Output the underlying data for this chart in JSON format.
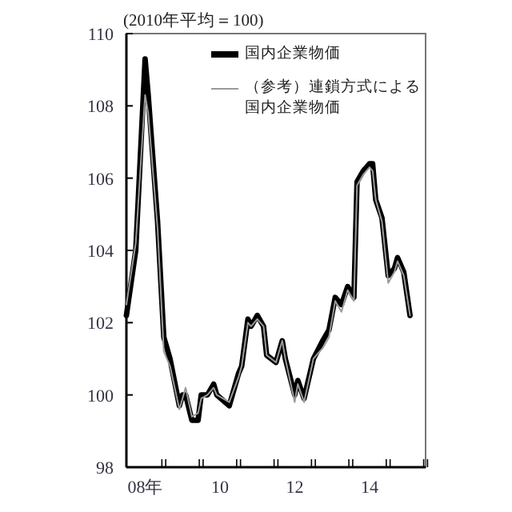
{
  "chart_data": {
    "type": "line",
    "ylabel": "(2010年平均＝100)",
    "x": [
      "2008-01",
      "2008-04",
      "2008-07",
      "2008-08",
      "2008-11",
      "2009-01",
      "2009-03",
      "2009-06",
      "2009-07",
      "2009-08",
      "2009-10",
      "2009-12",
      "2010-01",
      "2010-03",
      "2010-05",
      "2010-06",
      "2010-10",
      "2011-01",
      "2011-02",
      "2011-04",
      "2011-05",
      "2011-07",
      "2011-09",
      "2011-10",
      "2012-01",
      "2012-03",
      "2012-04",
      "2012-07",
      "2012-08",
      "2012-10",
      "2013-01",
      "2013-04",
      "2013-06",
      "2013-08",
      "2013-10",
      "2013-12",
      "2014-02",
      "2014-03",
      "2014-05",
      "2014-07",
      "2014-08",
      "2014-09",
      "2014-11",
      "2015-01",
      "2015-03",
      "2015-04",
      "2015-06",
      "2015-08"
    ],
    "series": [
      {
        "name": "国内企業物価",
        "color": "#000000",
        "values": [
          102.2,
          104.0,
          109.3,
          108.3,
          104.8,
          101.6,
          101.0,
          99.7,
          100.0,
          100.0,
          99.3,
          99.3,
          100.0,
          100.0,
          100.3,
          100.0,
          99.7,
          100.6,
          100.8,
          102.1,
          101.9,
          102.2,
          101.9,
          101.1,
          100.9,
          101.5,
          101.0,
          100.0,
          100.4,
          99.9,
          101.0,
          101.5,
          101.8,
          102.7,
          102.5,
          103.0,
          102.7,
          105.9,
          106.2,
          106.4,
          106.4,
          105.4,
          104.9,
          103.3,
          103.5,
          103.8,
          103.4,
          102.2
        ]
      },
      {
        "name": "（参考）連鎖方式による国内企業物価",
        "color": "#9a9a9a",
        "values": [
          102.5,
          104.2,
          108.3,
          107.8,
          104.6,
          101.2,
          100.8,
          99.6,
          99.9,
          100.2,
          99.4,
          99.5,
          99.9,
          100.0,
          100.2,
          100.0,
          99.8,
          100.5,
          100.8,
          102.0,
          101.9,
          102.1,
          101.9,
          101.1,
          100.9,
          101.5,
          101.0,
          99.8,
          100.3,
          99.8,
          101.0,
          101.3,
          101.6,
          102.6,
          102.3,
          102.9,
          102.6,
          105.8,
          106.1,
          106.3,
          106.2,
          105.4,
          104.8,
          103.1,
          103.4,
          103.7,
          103.3,
          102.2
        ]
      }
    ],
    "xlim": [
      "2008-01",
      "2016-01"
    ],
    "xticks": [
      {
        "value": "2008-07",
        "label": "08年"
      },
      {
        "value": "2009-01",
        "label": null
      },
      {
        "value": "2010-01",
        "label": null
      },
      {
        "value": "2010-07",
        "label": "10"
      },
      {
        "value": "2011-01",
        "label": null
      },
      {
        "value": "2012-01",
        "label": null
      },
      {
        "value": "2012-07",
        "label": "12"
      },
      {
        "value": "2013-01",
        "label": null
      },
      {
        "value": "2014-01",
        "label": null
      },
      {
        "value": "2014-07",
        "label": "14"
      },
      {
        "value": "2015-01",
        "label": null
      },
      {
        "value": "2016-01",
        "label": null
      }
    ],
    "ylim": [
      98,
      110
    ],
    "yticks": [
      98,
      100,
      102,
      104,
      106,
      108,
      110
    ],
    "legend": "top right"
  }
}
